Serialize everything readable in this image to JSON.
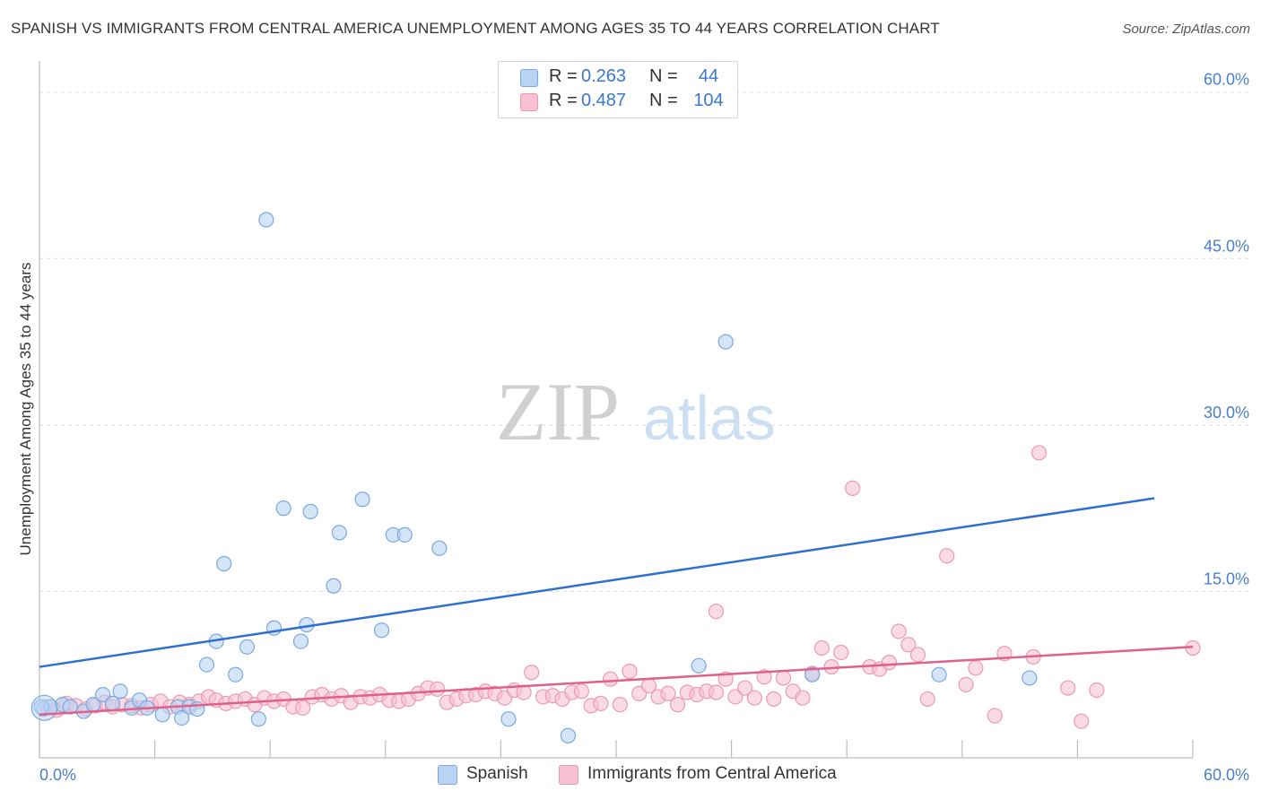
{
  "header": {
    "title": "SPANISH VS IMMIGRANTS FROM CENTRAL AMERICA UNEMPLOYMENT AMONG AGES 35 TO 44 YEARS CORRELATION CHART",
    "source": "Source: ZipAtlas.com"
  },
  "stats": [
    {
      "r_label": "R =",
      "r_value": "0.263",
      "n_label": "N =",
      "n_value": "44"
    },
    {
      "r_label": "R =",
      "r_value": "0.487",
      "n_label": "N =",
      "n_value": "104"
    }
  ],
  "watermark": {
    "zip": "ZIP",
    "atlas": "atlas"
  },
  "legend": {
    "series1": "Spanish",
    "series2": "Immigrants from Central America"
  },
  "colors": {
    "spanish_fill": "#b9d3f3",
    "spanish_stroke": "#7aa8e0",
    "spanish_line": "#2f6fd0",
    "immigrants_fill": "#f7c1d1",
    "immigrants_stroke": "#ec9ab3",
    "immigrants_line": "#e0608c",
    "tick_text": "#4a7fc9",
    "grid": "#dcdcdc"
  },
  "chart_data": {
    "type": "scatter",
    "title": "SPANISH VS IMMIGRANTS FROM CENTRAL AMERICA UNEMPLOYMENT AMONG AGES 35 TO 44 YEARS CORRELATION CHART",
    "xlabel": "",
    "ylabel": "Unemployment Among Ages 35 to 44 years",
    "xlim": [
      0,
      60
    ],
    "ylim": [
      0,
      62
    ],
    "x_tick_labels": [
      "0.0%",
      "60.0%"
    ],
    "y_ticks": [
      15,
      30,
      45,
      60
    ],
    "y_tick_labels": [
      "15.0%",
      "30.0%",
      "45.0%",
      "60.0%"
    ],
    "grid": true,
    "legend_position": "bottom",
    "series": [
      {
        "name": "Spanish",
        "trend": {
          "x": [
            0,
            58
          ],
          "y": [
            8.2,
            23.4
          ]
        },
        "points": [
          [
            0.2,
            4.4
          ],
          [
            0.6,
            4.6
          ],
          [
            1.2,
            4.8
          ],
          [
            1.6,
            4.6
          ],
          [
            2.3,
            4.2
          ],
          [
            2.8,
            4.8
          ],
          [
            3.3,
            5.7
          ],
          [
            3.8,
            4.9
          ],
          [
            4.2,
            6.0
          ],
          [
            4.8,
            4.5
          ],
          [
            5.2,
            5.2
          ],
          [
            5.6,
            4.5
          ],
          [
            6.4,
            3.9
          ],
          [
            7.2,
            4.6
          ],
          [
            7.4,
            3.6
          ],
          [
            7.8,
            4.6
          ],
          [
            8.2,
            4.4
          ],
          [
            8.7,
            8.4
          ],
          [
            9.2,
            10.5
          ],
          [
            9.6,
            17.5
          ],
          [
            10.2,
            7.5
          ],
          [
            10.8,
            10.0
          ],
          [
            11.4,
            3.5
          ],
          [
            11.8,
            48.5
          ],
          [
            12.2,
            11.7
          ],
          [
            12.7,
            22.5
          ],
          [
            13.6,
            10.5
          ],
          [
            13.9,
            12.0
          ],
          [
            14.1,
            22.2
          ],
          [
            15.3,
            15.5
          ],
          [
            15.6,
            20.3
          ],
          [
            16.8,
            23.3
          ],
          [
            17.8,
            11.5
          ],
          [
            18.4,
            20.1
          ],
          [
            19.0,
            20.1
          ],
          [
            20.8,
            18.9
          ],
          [
            24.4,
            3.5
          ],
          [
            27.5,
            2.0
          ],
          [
            34.3,
            8.3
          ],
          [
            35.7,
            37.5
          ],
          [
            40.2,
            7.5
          ],
          [
            46.8,
            7.5
          ],
          [
            51.5,
            7.2
          ],
          [
            0.1,
            4.6
          ]
        ]
      },
      {
        "name": "Immigrants from Central America",
        "trend": {
          "x": [
            0,
            60
          ],
          "y": [
            3.9,
            10.0
          ]
        },
        "points": [
          [
            0.4,
            4.6
          ],
          [
            0.9,
            4.3
          ],
          [
            1.4,
            4.9
          ],
          [
            1.9,
            4.7
          ],
          [
            2.4,
            4.4
          ],
          [
            2.9,
            4.7
          ],
          [
            3.4,
            5.0
          ],
          [
            3.8,
            4.6
          ],
          [
            4.3,
            4.8
          ],
          [
            4.8,
            4.7
          ],
          [
            5.3,
            4.5
          ],
          [
            5.8,
            4.8
          ],
          [
            6.3,
            5.1
          ],
          [
            6.8,
            4.6
          ],
          [
            7.3,
            5.0
          ],
          [
            7.8,
            4.8
          ],
          [
            8.3,
            5.1
          ],
          [
            8.8,
            5.5
          ],
          [
            9.2,
            5.2
          ],
          [
            9.7,
            4.9
          ],
          [
            10.2,
            5.1
          ],
          [
            10.7,
            5.3
          ],
          [
            11.2,
            4.8
          ],
          [
            11.7,
            5.4
          ],
          [
            12.2,
            5.1
          ],
          [
            12.7,
            5.3
          ],
          [
            13.2,
            4.6
          ],
          [
            13.7,
            4.5
          ],
          [
            14.2,
            5.5
          ],
          [
            14.7,
            5.7
          ],
          [
            15.2,
            5.3
          ],
          [
            15.7,
            5.6
          ],
          [
            16.2,
            5.0
          ],
          [
            16.7,
            5.5
          ],
          [
            17.2,
            5.4
          ],
          [
            17.7,
            5.7
          ],
          [
            18.2,
            5.2
          ],
          [
            18.7,
            5.1
          ],
          [
            19.2,
            5.3
          ],
          [
            19.7,
            5.8
          ],
          [
            20.2,
            6.3
          ],
          [
            20.7,
            6.2
          ],
          [
            21.2,
            5.0
          ],
          [
            21.7,
            5.3
          ],
          [
            22.2,
            5.6
          ],
          [
            22.7,
            5.7
          ],
          [
            23.2,
            6.0
          ],
          [
            23.7,
            5.8
          ],
          [
            24.2,
            5.4
          ],
          [
            24.7,
            6.1
          ],
          [
            25.2,
            5.9
          ],
          [
            25.6,
            7.7
          ],
          [
            26.2,
            5.5
          ],
          [
            26.7,
            5.6
          ],
          [
            27.2,
            5.3
          ],
          [
            27.7,
            5.9
          ],
          [
            28.2,
            6.0
          ],
          [
            28.7,
            4.7
          ],
          [
            29.2,
            4.9
          ],
          [
            29.7,
            7.1
          ],
          [
            30.2,
            4.8
          ],
          [
            30.7,
            7.8
          ],
          [
            31.2,
            5.8
          ],
          [
            31.7,
            6.5
          ],
          [
            32.2,
            5.5
          ],
          [
            32.7,
            5.8
          ],
          [
            33.2,
            4.8
          ],
          [
            33.7,
            5.9
          ],
          [
            34.2,
            5.7
          ],
          [
            34.7,
            6.0
          ],
          [
            35.2,
            5.9
          ],
          [
            35.7,
            7.1
          ],
          [
            36.2,
            5.5
          ],
          [
            36.7,
            6.3
          ],
          [
            37.2,
            5.4
          ],
          [
            37.7,
            7.3
          ],
          [
            38.2,
            5.3
          ],
          [
            38.7,
            7.2
          ],
          [
            39.2,
            6.0
          ],
          [
            39.7,
            5.4
          ],
          [
            40.2,
            7.6
          ],
          [
            40.7,
            9.9
          ],
          [
            41.2,
            8.2
          ],
          [
            41.7,
            9.5
          ],
          [
            35.2,
            13.2
          ],
          [
            43.2,
            8.2
          ],
          [
            43.7,
            8.0
          ],
          [
            44.2,
            8.6
          ],
          [
            44.7,
            11.4
          ],
          [
            45.2,
            10.2
          ],
          [
            45.7,
            9.3
          ],
          [
            46.2,
            5.3
          ],
          [
            47.2,
            18.2
          ],
          [
            48.2,
            6.6
          ],
          [
            48.7,
            8.1
          ],
          [
            49.7,
            3.8
          ],
          [
            50.2,
            9.4
          ],
          [
            51.7,
            9.1
          ],
          [
            53.5,
            6.3
          ],
          [
            54.2,
            3.3
          ],
          [
            55.0,
            6.1
          ],
          [
            42.3,
            24.3
          ],
          [
            52.0,
            27.5
          ],
          [
            60.0,
            9.9
          ]
        ]
      }
    ]
  }
}
